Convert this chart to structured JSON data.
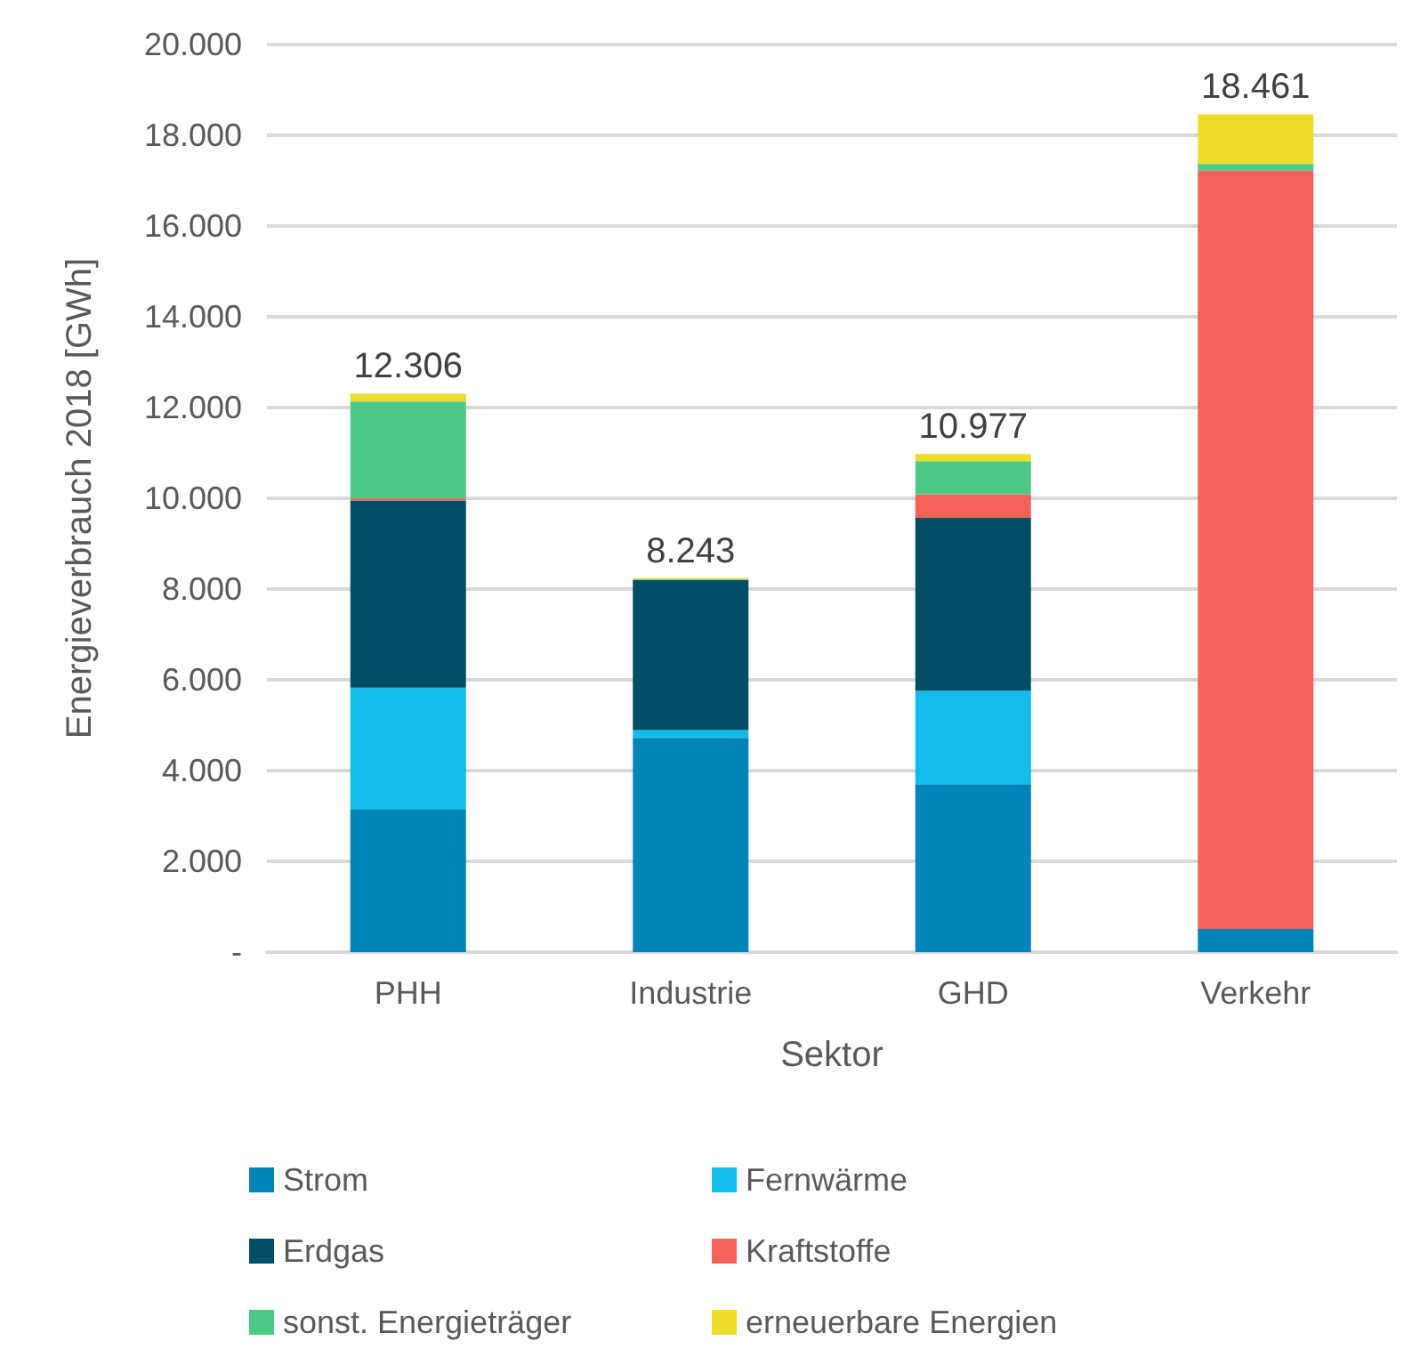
{
  "chart_data": {
    "type": "bar",
    "stacked": true,
    "xlabel": "Sektor",
    "ylabel": "Energieverbrauch 2018 [GWh]",
    "categories": [
      "PHH",
      "Industrie",
      "GHD",
      "Verkehr"
    ],
    "series": [
      {
        "name": "Strom",
        "color": "#0083b6",
        "values": [
          3150,
          4720,
          3700,
          510
        ]
      },
      {
        "name": "Fernwärme",
        "color": "#12bbea",
        "values": [
          2680,
          170,
          2060,
          0
        ]
      },
      {
        "name": "Erdgas",
        "color": "#004d66",
        "values": [
          4120,
          3310,
          3810,
          0
        ]
      },
      {
        "name": "Kraftstoffe",
        "color": "#f4635a",
        "values": [
          50,
          0,
          520,
          16710
        ]
      },
      {
        "name": "sonst. Energieträger",
        "color": "#4bc985",
        "values": [
          2130,
          20,
          730,
          150
        ]
      },
      {
        "name": "erneuerbare Energien",
        "color": "#eedc2a",
        "values": [
          176,
          23,
          157,
          1091
        ]
      }
    ],
    "totals": [
      "12.306",
      "8.243",
      "10.977",
      "18.461"
    ],
    "ylim": [
      0,
      20000
    ],
    "yticks": [
      {
        "value": 0,
        "label": "-"
      },
      {
        "value": 2000,
        "label": "2.000"
      },
      {
        "value": 4000,
        "label": "4.000"
      },
      {
        "value": 6000,
        "label": "6.000"
      },
      {
        "value": 8000,
        "label": "8.000"
      },
      {
        "value": 10000,
        "label": "10.000"
      },
      {
        "value": 12000,
        "label": "12.000"
      },
      {
        "value": 14000,
        "label": "14.000"
      },
      {
        "value": 16000,
        "label": "16.000"
      },
      {
        "value": 18000,
        "label": "18.000"
      },
      {
        "value": 20000,
        "label": "20.000"
      }
    ],
    "grid": "y",
    "legend": "bottom"
  }
}
